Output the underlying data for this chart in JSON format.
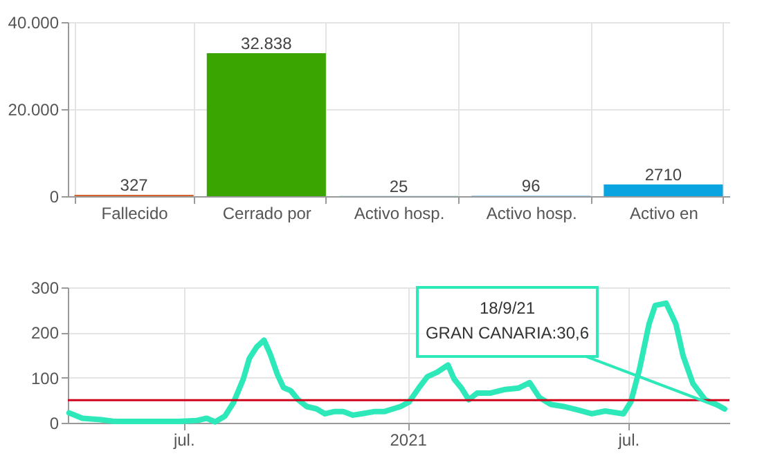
{
  "chart_data": [
    {
      "type": "bar",
      "categories": [
        "Fallecido",
        "Cerrado por",
        "Activo hosp.",
        "Activo hosp.",
        "Activo en"
      ],
      "values": [
        327,
        32838,
        25,
        96,
        2710
      ],
      "colors": [
        "#d4622a",
        "#3aa500",
        "#4aa8d8",
        "#3b9ad6",
        "#0aa4e0"
      ],
      "value_labels": [
        "327",
        "32.838",
        "25",
        "96",
        "2710"
      ],
      "ylim": [
        0,
        40000
      ],
      "yticks": [
        {
          "value": 0,
          "label": "0"
        },
        {
          "value": 20000,
          "label": "20.000"
        },
        {
          "value": 40000,
          "label": "40.000"
        }
      ],
      "grid": true
    },
    {
      "type": "line",
      "marker": "none",
      "line_style": "solid",
      "grid": true,
      "x": [
        "2020-03-29",
        "2020-04-09",
        "2020-04-24",
        "2020-05-05",
        "2020-05-20",
        "2020-06-27",
        "2020-07-12",
        "2020-07-20",
        "2020-07-27",
        "2020-08-04",
        "2020-08-11",
        "2020-08-19",
        "2020-08-24",
        "2020-08-30",
        "2020-09-05",
        "2020-09-10",
        "2020-09-16",
        "2020-09-21",
        "2020-09-27",
        "2020-10-03",
        "2020-10-10",
        "2020-10-18",
        "2020-10-25",
        "2020-11-02",
        "2020-11-09",
        "2020-11-17",
        "2020-11-24",
        "2020-12-05",
        "2020-12-13",
        "2020-12-26",
        "2021-01-02",
        "2021-01-10",
        "2021-01-17",
        "2021-01-25",
        "2021-02-03",
        "2021-02-08",
        "2021-02-14",
        "2021-02-20",
        "2021-02-27",
        "2021-03-10",
        "2021-03-22",
        "2021-04-02",
        "2021-04-11",
        "2021-04-19",
        "2021-04-28",
        "2021-05-09",
        "2021-05-21",
        "2021-06-01",
        "2021-06-12",
        "2021-06-27",
        "2021-07-03",
        "2021-07-10",
        "2021-07-18",
        "2021-07-23",
        "2021-08-01",
        "2021-08-09",
        "2021-08-15",
        "2021-08-23",
        "2021-09-02",
        "2021-09-11",
        "2021-09-18"
      ],
      "series": [
        {
          "color": "#2de8b9",
          "values": [
            22,
            10,
            7,
            3,
            3,
            3,
            5,
            10,
            2,
            15,
            45,
            97,
            143,
            168,
            183,
            153,
            107,
            78,
            71,
            51,
            36,
            31,
            20,
            25,
            25,
            17,
            20,
            25,
            25,
            36,
            46,
            77,
            102,
            112,
            128,
            97,
            77,
            51,
            66,
            66,
            74,
            77,
            89,
            56,
            41,
            36,
            28,
            20,
            26,
            20,
            46,
            117,
            219,
            260,
            265,
            219,
            148,
            87,
            51,
            41,
            30.6
          ]
        }
      ],
      "xlim": [
        "2020-03-28",
        "2021-09-22"
      ],
      "xticks": [
        {
          "value": "2020-07-01",
          "label": "jul."
        },
        {
          "value": "2021-01-01",
          "label": "2021"
        },
        {
          "value": "2021-07-01",
          "label": "jul."
        }
      ],
      "ylim": [
        0,
        300
      ],
      "yticks": [
        0,
        100,
        200,
        300
      ],
      "ref_lines": [
        {
          "axis": "y",
          "value": 50,
          "color": "#d0021b"
        }
      ],
      "annotations": [
        {
          "text": "18/9/21\nGRAN CANARIA:30,6",
          "x": "2021-09-18",
          "y": 30.6
        }
      ]
    }
  ]
}
